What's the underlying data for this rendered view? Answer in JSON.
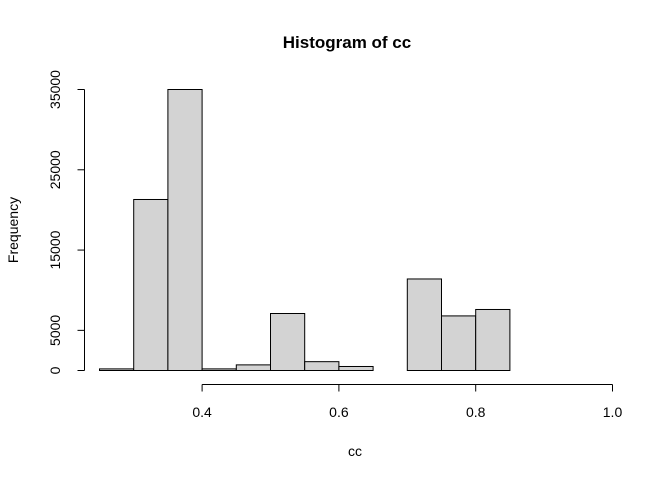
{
  "chart_data": {
    "type": "bar",
    "title": "Histogram of cc",
    "xlabel": "cc",
    "ylabel": "Frequency",
    "xlim": [
      0.25,
      1.0
    ],
    "ylim": [
      0,
      35000
    ],
    "bins": [
      {
        "from": 0.25,
        "to": 0.3,
        "count": 200
      },
      {
        "from": 0.3,
        "to": 0.35,
        "count": 21300
      },
      {
        "from": 0.35,
        "to": 0.4,
        "count": 35000
      },
      {
        "from": 0.4,
        "to": 0.45,
        "count": 200
      },
      {
        "from": 0.45,
        "to": 0.5,
        "count": 700
      },
      {
        "from": 0.5,
        "to": 0.55,
        "count": 7100
      },
      {
        "from": 0.55,
        "to": 0.6,
        "count": 1100
      },
      {
        "from": 0.6,
        "to": 0.65,
        "count": 500
      },
      {
        "from": 0.65,
        "to": 0.7,
        "count": 0
      },
      {
        "from": 0.7,
        "to": 0.75,
        "count": 11400
      },
      {
        "from": 0.75,
        "to": 0.8,
        "count": 6800
      },
      {
        "from": 0.8,
        "to": 0.85,
        "count": 7600
      },
      {
        "from": 0.85,
        "to": 0.9,
        "count": 0
      },
      {
        "from": 0.9,
        "to": 0.95,
        "count": 0
      },
      {
        "from": 0.95,
        "to": 1.0,
        "count": 0
      }
    ],
    "x_ticks": [
      {
        "value": 0.4,
        "label": "0.4"
      },
      {
        "value": 0.6,
        "label": "0.6"
      },
      {
        "value": 0.8,
        "label": "0.8"
      },
      {
        "value": 1.0,
        "label": "1.0"
      }
    ],
    "y_ticks": [
      {
        "value": 0,
        "label": "0"
      },
      {
        "value": 5000,
        "label": "5000"
      },
      {
        "value": 15000,
        "label": "15000"
      },
      {
        "value": 25000,
        "label": "25000"
      },
      {
        "value": 35000,
        "label": "35000"
      }
    ],
    "bar_fill": "#d3d3d3",
    "bar_stroke": "#000000",
    "grid": false,
    "legend": "none"
  }
}
